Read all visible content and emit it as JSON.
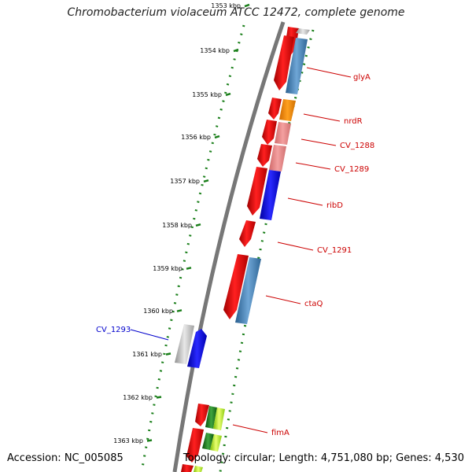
{
  "header": {
    "title": "Chromobacterium violaceum ATCC 12472, complete genome"
  },
  "footer": {
    "accession": "Accession: NC_005085",
    "info": "Topology: circular; Length: 4,751,080 bp; Genes: 4,530"
  },
  "ticks": [
    "1353 kbp",
    "1354 kbp",
    "1355 kbp",
    "1356 kbp",
    "1357 kbp",
    "1358 kbp",
    "1359 kbp",
    "1360 kbp",
    "1361 kbp",
    "1362 kbp",
    "1363 kbp"
  ],
  "gene_labels": [
    {
      "text": "glyA",
      "color": "#cc0000"
    },
    {
      "text": "nrdR",
      "color": "#cc0000"
    },
    {
      "text": "CV_1288",
      "color": "#cc0000"
    },
    {
      "text": "CV_1289",
      "color": "#cc0000"
    },
    {
      "text": "ribD",
      "color": "#cc0000"
    },
    {
      "text": "CV_1291",
      "color": "#cc0000"
    },
    {
      "text": "ctaQ",
      "color": "#cc0000"
    },
    {
      "text": "fimA",
      "color": "#cc0000"
    },
    {
      "text": "CV_1293",
      "color": "#0000cc"
    }
  ],
  "colors": {
    "backbone": "#777777",
    "forward_gene": "#ff0000",
    "tick_marks": "#1a7f1a"
  }
}
